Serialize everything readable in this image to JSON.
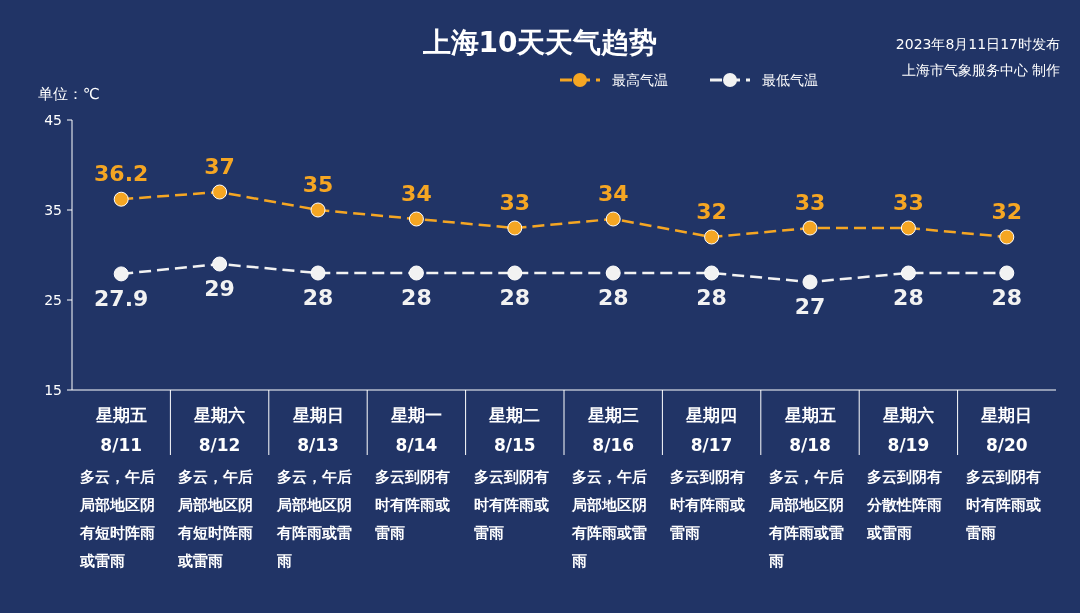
{
  "chart_data": {
    "type": "line",
    "title": "上海10天天气趋势",
    "ylabel": "单位：℃",
    "categories": [
      "星期五\n8/11",
      "星期六\n8/12",
      "星期日\n8/13",
      "星期一\n8/14",
      "星期二\n8/15",
      "星期三\n8/16",
      "星期四\n8/17",
      "星期五\n8/18",
      "星期六\n8/19",
      "星期日\n8/20"
    ],
    "series": [
      {
        "name": "最高气温",
        "color": "#f5a623",
        "values": [
          36.2,
          37,
          35,
          34,
          33,
          34,
          32,
          33,
          33,
          32
        ]
      },
      {
        "name": "最低气温",
        "color": "#f2f2f2",
        "values": [
          27.9,
          29,
          28,
          28,
          28,
          28,
          28,
          27,
          28,
          28
        ]
      }
    ],
    "ylim": [
      15,
      45
    ],
    "yticks": [
      15,
      25,
      35,
      45
    ],
    "grid": false,
    "legend": "top",
    "marker": "circle",
    "line_style": "dashed",
    "data_labels": true,
    "annotations": [
      "2023年8月11日17时发布",
      "上海市气象服务中心 制作",
      "多云，午后局部地区阴有短时阵雨或雷雨",
      "多云，午后局部地区阴有短时阵雨或雷雨",
      "多云，午后局部地区阴有阵雨或雷雨",
      "多云到阴有时有阵雨或雷雨",
      "多云到阴有时有阵雨或雷雨",
      "多云，午后局部地区阴有阵雨或雷雨",
      "多云到阴有时有阵雨或雷雨",
      "多云，午后局部地区阴有阵雨或雷雨",
      "多云到阴有分散性阵雨或雷雨",
      "多云到阴有时有阵雨或雷雨"
    ]
  }
}
